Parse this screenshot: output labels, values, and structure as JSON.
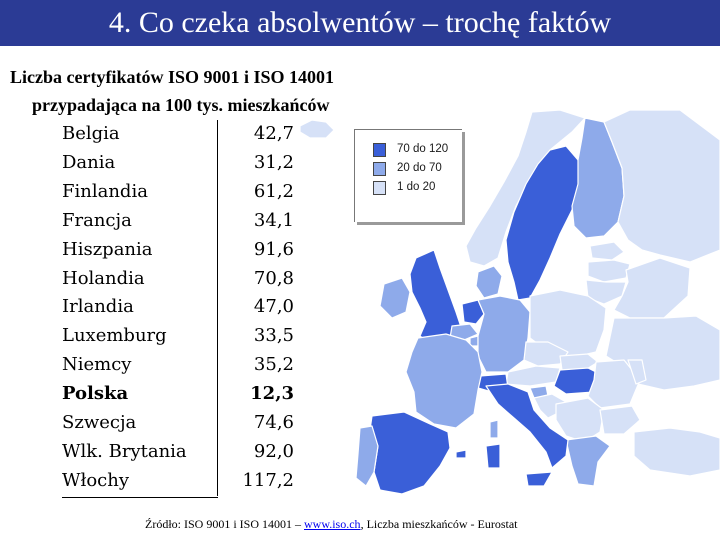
{
  "title": "4. Co czeka absolwentów – trochę faktów",
  "subtitle_line1": "Liczba certyfikatów ISO 9001 i ISO 14001",
  "subtitle_line2": "przypadająca na 100 tys. mieszkańców",
  "rows": [
    {
      "country": "Belgia",
      "value": "42,7"
    },
    {
      "country": "Dania",
      "value": "31,2"
    },
    {
      "country": "Finlandia",
      "value": "61,2"
    },
    {
      "country": "Francja",
      "value": "34,1"
    },
    {
      "country": "Hiszpania",
      "value": "91,6"
    },
    {
      "country": "Holandia",
      "value": "70,8"
    },
    {
      "country": "Irlandia",
      "value": "47,0"
    },
    {
      "country": "Luxemburg",
      "value": "33,5"
    },
    {
      "country": "Niemcy",
      "value": "35,2"
    },
    {
      "country": "Polska",
      "value": "12,3"
    },
    {
      "country": "Szwecja",
      "value": "74,6"
    },
    {
      "country": "Wlk. Brytania",
      "value": "92,0"
    },
    {
      "country": "Włochy",
      "value": "117,2"
    }
  ],
  "legend": [
    {
      "label": "70 do 120",
      "color": "#3a5fd8"
    },
    {
      "label": "20 do  70",
      "color": "#8eaaea"
    },
    {
      "label": "1 do  20",
      "color": "#d6e1f7"
    }
  ],
  "source": {
    "prefix": "Źródło: ISO 9001 i ISO 14001 – ",
    "link": "www.iso.ch",
    "suffix": ", Liczba mieszkańców - Eurostat"
  },
  "colors": {
    "title_bar": "#2b3b95",
    "high": "#3a5fd8",
    "mid": "#8eaaea",
    "low": "#d6e1f7",
    "border": "#ffffff"
  }
}
